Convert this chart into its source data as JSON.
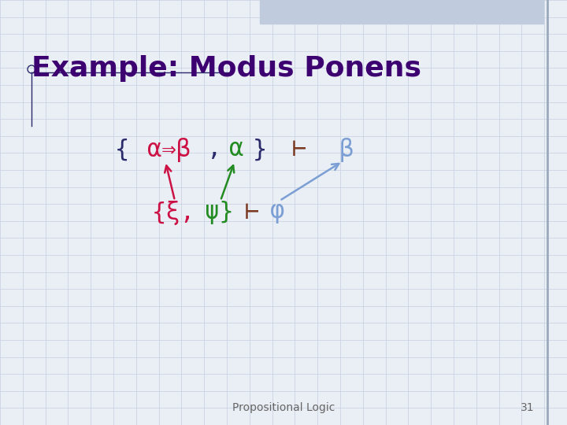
{
  "title": "Example: Modus Ponens",
  "title_color": "#3D0070",
  "title_fontsize": 26,
  "bg_color": "#EAEEF5",
  "grid_color": "#C5CFDF",
  "footer_text": "Propositional Logic",
  "footer_number": "31",
  "footer_color": "#666666",
  "footer_fontsize": 10,
  "colors": {
    "bracket": "#2B2B6B",
    "alpha_beta": "#CC1144",
    "alpha2": "#228B22",
    "turnstile": "#7B3B22",
    "beta_right": "#7B9FD4",
    "xi": "#CC1144",
    "psi": "#228B22",
    "phi": "#7B9FD4",
    "arrow_red": "#CC1144",
    "arrow_green": "#228B22",
    "arrow_blue": "#7B9FD4",
    "topbar": "#C0CCDD",
    "rightline": "#9AAABB"
  }
}
